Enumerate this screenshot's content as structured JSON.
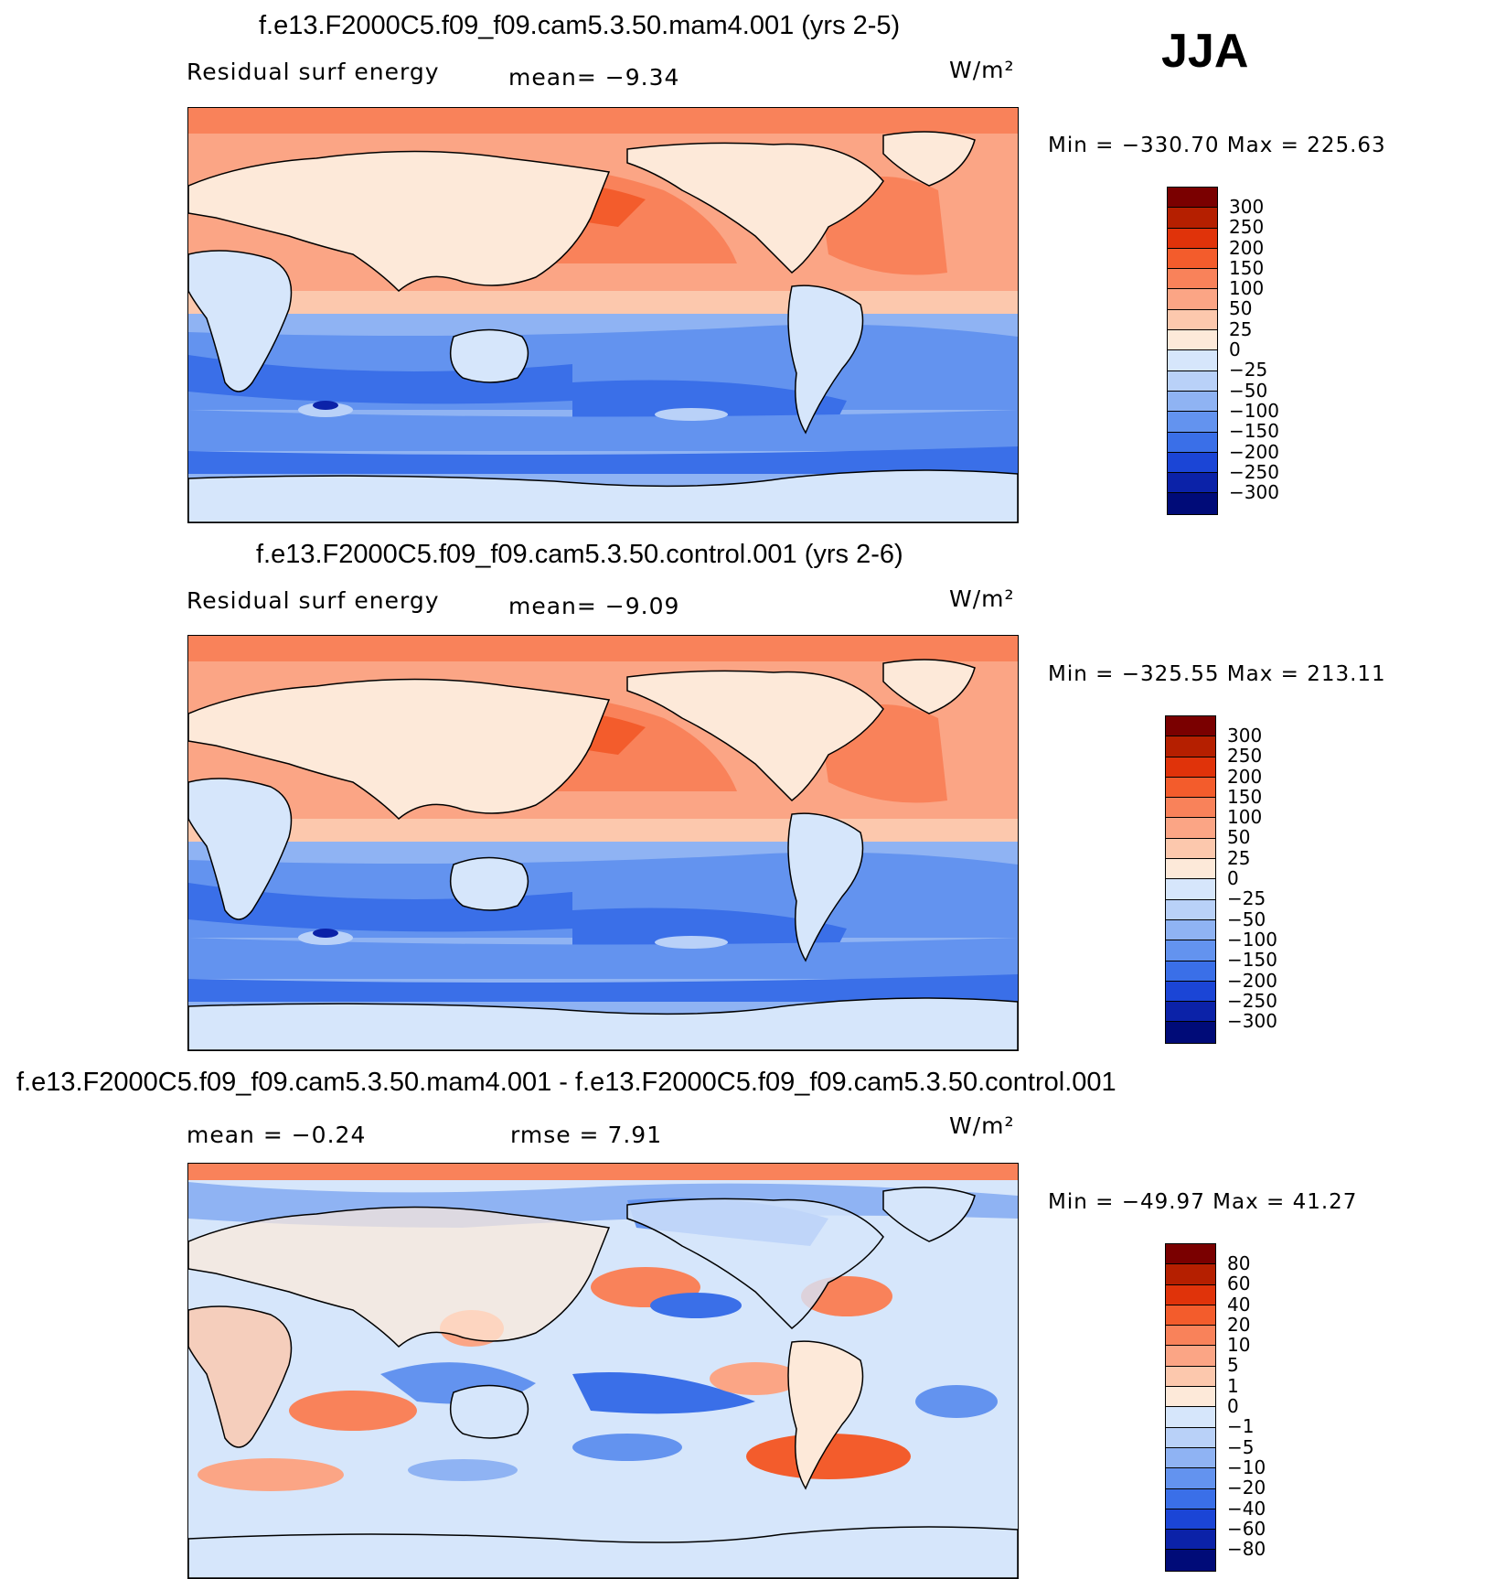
{
  "season": "JJA",
  "panels": [
    {
      "title": "f.e13.F2000C5.f09_f09.cam5.3.50.mam4.001 (yrs 2-5)",
      "variable": "Residual surf energy",
      "stat1": "mean=   −9.34",
      "stat2": "",
      "units": "W/m²",
      "minmax": "Min  =  −330.70  Max  =  225.63",
      "levels": [
        "300",
        "250",
        "200",
        "150",
        "100",
        "50",
        "25",
        "0",
        "−25",
        "−50",
        "−100",
        "−150",
        "−200",
        "−250",
        "−300"
      ],
      "palette": [
        "#7a0000",
        "#b51f00",
        "#e0330a",
        "#f35c2c",
        "#f9825a",
        "#fba585",
        "#fcc8ad",
        "#fde9d9",
        "#d6e6fb",
        "#b9d1f8",
        "#8fb3f3",
        "#6393ef",
        "#3a6fe8",
        "#1b45d6",
        "#0b22a8",
        "#000b78"
      ]
    },
    {
      "title": "f.e13.F2000C5.f09_f09.cam5.3.50.control.001 (yrs 2-6)",
      "variable": "Residual surf energy",
      "stat1": "mean=   −9.09",
      "stat2": "",
      "units": "W/m²",
      "minmax": "Min  =  −325.55  Max  =  213.11",
      "levels": [
        "300",
        "250",
        "200",
        "150",
        "100",
        "50",
        "25",
        "0",
        "−25",
        "−50",
        "−100",
        "−150",
        "−200",
        "−250",
        "−300"
      ],
      "palette": [
        "#7a0000",
        "#b51f00",
        "#e0330a",
        "#f35c2c",
        "#f9825a",
        "#fba585",
        "#fcc8ad",
        "#fde9d9",
        "#d6e6fb",
        "#b9d1f8",
        "#8fb3f3",
        "#6393ef",
        "#3a6fe8",
        "#1b45d6",
        "#0b22a8",
        "#000b78"
      ]
    },
    {
      "title": "f.e13.F2000C5.f09_f09.cam5.3.50.mam4.001 - f.e13.F2000C5.f09_f09.cam5.3.50.control.001",
      "variable": "",
      "stat1": "mean  =   −0.24",
      "stat2": "rmse  =       7.91",
      "units": "W/m²",
      "minmax": "Min  =  −49.97  Max  =    41.27",
      "levels": [
        "80",
        "60",
        "40",
        "20",
        "10",
        "5",
        "1",
        "0",
        "−1",
        "−5",
        "−10",
        "−20",
        "−40",
        "−60",
        "−80"
      ],
      "palette": [
        "#7a0000",
        "#b51f00",
        "#e0330a",
        "#f35c2c",
        "#f9825a",
        "#fba585",
        "#fcc8ad",
        "#fde9d9",
        "#d6e6fb",
        "#b9d1f8",
        "#8fb3f3",
        "#6393ef",
        "#3a6fe8",
        "#1b45d6",
        "#0b22a8",
        "#000b78"
      ]
    }
  ]
}
